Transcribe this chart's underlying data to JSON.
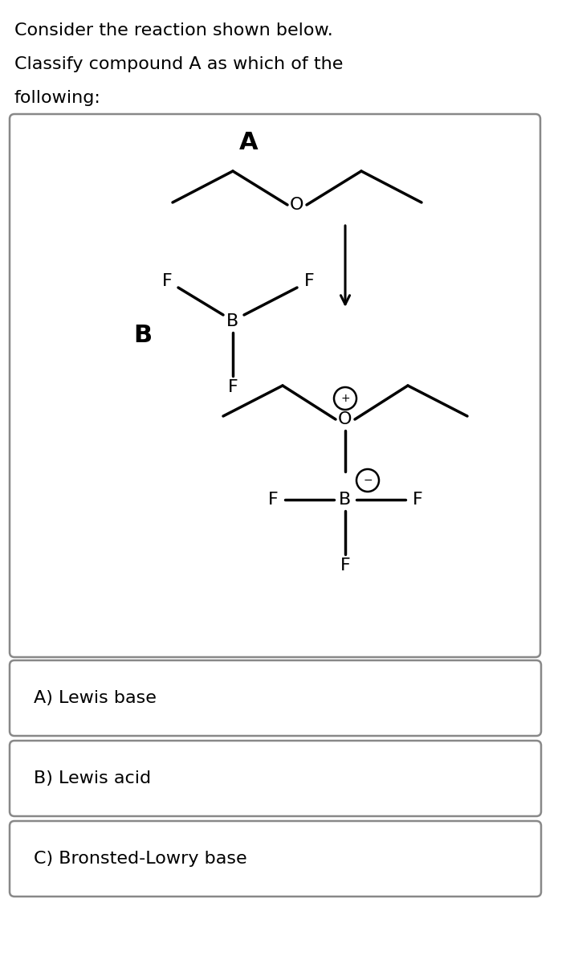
{
  "question_text": [
    "Consider the reaction shown below.",
    "Classify compound A as which of the",
    "following:"
  ],
  "question_fontsize": 16,
  "bg_color": "#ffffff",
  "options": [
    "A) Lewis base",
    "B) Lewis acid",
    "C) Bronsted-Lowry base"
  ],
  "option_fontsize": 16,
  "fig_width": 7.05,
  "fig_height": 12.0,
  "dpi": 100
}
